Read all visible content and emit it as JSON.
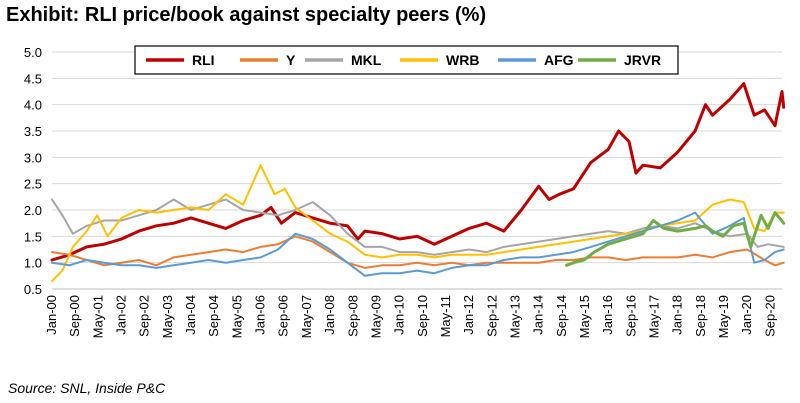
{
  "header": {
    "title": "Exhibit: RLI price/book against specialty peers (%)"
  },
  "footer": {
    "source": "Source: SNL, Inside P&C"
  },
  "chart_data": {
    "type": "line",
    "title": "Exhibit: RLI price/book against specialty peers (%)",
    "xlabel": "",
    "ylabel": "",
    "ylim": [
      0.5,
      5.0
    ],
    "yticks": [
      "5.0",
      "4.5",
      "4.0",
      "3.5",
      "3.0",
      "2.5",
      "2.0",
      "1.5",
      "1.0",
      "0.5"
    ],
    "x_tick_labels": [
      "Jan-00",
      "Sep-00",
      "May-01",
      "Jan-02",
      "Sep-02",
      "May-03",
      "Jan-04",
      "Sep-04",
      "May-05",
      "Jan-06",
      "Sep-06",
      "May-07",
      "Jan-08",
      "Sep-08",
      "May-09",
      "Jan-10",
      "Sep-10",
      "May-11",
      "Jan-12",
      "Sep-12",
      "May-13",
      "Jan-14",
      "Sep-14",
      "May-15",
      "Jan-16",
      "Sep-16",
      "May-17",
      "Jan-18",
      "Sep-18",
      "May-19",
      "Jan-20",
      "Sep-20"
    ],
    "x_range_years": [
      2000.0,
      2021.0
    ],
    "grid": "horizontal",
    "legend_position": "top",
    "series": [
      {
        "name": "RLI",
        "color": "#C00000",
        "points": [
          [
            2000.0,
            1.05
          ],
          [
            2000.5,
            1.15
          ],
          [
            2001.0,
            1.3
          ],
          [
            2001.5,
            1.35
          ],
          [
            2002.0,
            1.45
          ],
          [
            2002.5,
            1.6
          ],
          [
            2003.0,
            1.7
          ],
          [
            2003.5,
            1.75
          ],
          [
            2004.0,
            1.85
          ],
          [
            2004.5,
            1.75
          ],
          [
            2005.0,
            1.65
          ],
          [
            2005.5,
            1.8
          ],
          [
            2006.0,
            1.9
          ],
          [
            2006.3,
            2.05
          ],
          [
            2006.6,
            1.75
          ],
          [
            2007.0,
            1.95
          ],
          [
            2007.5,
            1.85
          ],
          [
            2008.0,
            1.75
          ],
          [
            2008.5,
            1.7
          ],
          [
            2008.8,
            1.45
          ],
          [
            2009.0,
            1.6
          ],
          [
            2009.5,
            1.55
          ],
          [
            2010.0,
            1.45
          ],
          [
            2010.5,
            1.5
          ],
          [
            2011.0,
            1.35
          ],
          [
            2011.5,
            1.5
          ],
          [
            2012.0,
            1.65
          ],
          [
            2012.5,
            1.75
          ],
          [
            2013.0,
            1.6
          ],
          [
            2013.5,
            2.0
          ],
          [
            2014.0,
            2.45
          ],
          [
            2014.3,
            2.2
          ],
          [
            2014.6,
            2.3
          ],
          [
            2015.0,
            2.4
          ],
          [
            2015.5,
            2.9
          ],
          [
            2016.0,
            3.15
          ],
          [
            2016.3,
            3.5
          ],
          [
            2016.6,
            3.3
          ],
          [
            2016.8,
            2.7
          ],
          [
            2017.0,
            2.85
          ],
          [
            2017.5,
            2.8
          ],
          [
            2018.0,
            3.1
          ],
          [
            2018.5,
            3.5
          ],
          [
            2018.8,
            4.0
          ],
          [
            2019.0,
            3.8
          ],
          [
            2019.5,
            4.1
          ],
          [
            2019.9,
            4.4
          ],
          [
            2020.2,
            3.8
          ],
          [
            2020.5,
            3.9
          ],
          [
            2020.8,
            3.6
          ],
          [
            2021.0,
            4.25
          ],
          [
            2021.05,
            3.95
          ]
        ]
      },
      {
        "name": "Y",
        "color": "#ED7D31",
        "points": [
          [
            2000.0,
            1.2
          ],
          [
            2000.5,
            1.15
          ],
          [
            2001.0,
            1.05
          ],
          [
            2001.5,
            0.95
          ],
          [
            2002.0,
            1.0
          ],
          [
            2002.5,
            1.05
          ],
          [
            2003.0,
            0.95
          ],
          [
            2003.5,
            1.1
          ],
          [
            2004.0,
            1.15
          ],
          [
            2004.5,
            1.2
          ],
          [
            2005.0,
            1.25
          ],
          [
            2005.5,
            1.2
          ],
          [
            2006.0,
            1.3
          ],
          [
            2006.5,
            1.35
          ],
          [
            2007.0,
            1.5
          ],
          [
            2007.5,
            1.4
          ],
          [
            2008.0,
            1.2
          ],
          [
            2008.5,
            1.0
          ],
          [
            2009.0,
            0.9
          ],
          [
            2009.5,
            0.95
          ],
          [
            2010.0,
            0.95
          ],
          [
            2010.5,
            1.0
          ],
          [
            2011.0,
            0.95
          ],
          [
            2011.5,
            1.0
          ],
          [
            2012.0,
            0.95
          ],
          [
            2012.5,
            1.0
          ],
          [
            2013.0,
            1.0
          ],
          [
            2013.5,
            1.0
          ],
          [
            2014.0,
            1.0
          ],
          [
            2014.5,
            1.05
          ],
          [
            2015.0,
            1.05
          ],
          [
            2015.5,
            1.1
          ],
          [
            2016.0,
            1.1
          ],
          [
            2016.5,
            1.05
          ],
          [
            2017.0,
            1.1
          ],
          [
            2017.5,
            1.1
          ],
          [
            2018.0,
            1.1
          ],
          [
            2018.5,
            1.15
          ],
          [
            2019.0,
            1.1
          ],
          [
            2019.5,
            1.2
          ],
          [
            2020.0,
            1.25
          ],
          [
            2020.5,
            1.05
          ],
          [
            2020.8,
            0.95
          ],
          [
            2021.05,
            1.0
          ]
        ]
      },
      {
        "name": "MKL",
        "color": "#A5A5A5",
        "points": [
          [
            2000.0,
            2.2
          ],
          [
            2000.3,
            1.9
          ],
          [
            2000.6,
            1.55
          ],
          [
            2001.0,
            1.7
          ],
          [
            2001.5,
            1.8
          ],
          [
            2002.0,
            1.8
          ],
          [
            2002.5,
            1.9
          ],
          [
            2003.0,
            2.0
          ],
          [
            2003.5,
            2.2
          ],
          [
            2004.0,
            2.0
          ],
          [
            2004.5,
            2.1
          ],
          [
            2005.0,
            2.2
          ],
          [
            2005.5,
            2.0
          ],
          [
            2006.0,
            1.95
          ],
          [
            2006.5,
            1.9
          ],
          [
            2007.0,
            2.0
          ],
          [
            2007.5,
            2.15
          ],
          [
            2008.0,
            1.9
          ],
          [
            2008.5,
            1.55
          ],
          [
            2009.0,
            1.3
          ],
          [
            2009.5,
            1.3
          ],
          [
            2010.0,
            1.2
          ],
          [
            2010.5,
            1.2
          ],
          [
            2011.0,
            1.15
          ],
          [
            2011.5,
            1.2
          ],
          [
            2012.0,
            1.25
          ],
          [
            2012.5,
            1.2
          ],
          [
            2013.0,
            1.3
          ],
          [
            2013.5,
            1.35
          ],
          [
            2014.0,
            1.4
          ],
          [
            2014.5,
            1.45
          ],
          [
            2015.0,
            1.5
          ],
          [
            2015.5,
            1.55
          ],
          [
            2016.0,
            1.6
          ],
          [
            2016.5,
            1.55
          ],
          [
            2017.0,
            1.65
          ],
          [
            2017.5,
            1.7
          ],
          [
            2018.0,
            1.65
          ],
          [
            2018.5,
            1.75
          ],
          [
            2019.0,
            1.6
          ],
          [
            2019.5,
            1.5
          ],
          [
            2020.0,
            1.55
          ],
          [
            2020.3,
            1.3
          ],
          [
            2020.6,
            1.35
          ],
          [
            2021.05,
            1.3
          ]
        ]
      },
      {
        "name": "WRB",
        "color": "#FFC000",
        "points": [
          [
            2000.0,
            0.65
          ],
          [
            2000.3,
            0.85
          ],
          [
            2000.6,
            1.3
          ],
          [
            2001.0,
            1.6
          ],
          [
            2001.3,
            1.9
          ],
          [
            2001.6,
            1.5
          ],
          [
            2002.0,
            1.85
          ],
          [
            2002.5,
            2.0
          ],
          [
            2003.0,
            1.95
          ],
          [
            2003.5,
            2.0
          ],
          [
            2004.0,
            2.05
          ],
          [
            2004.5,
            2.0
          ],
          [
            2005.0,
            2.3
          ],
          [
            2005.5,
            2.1
          ],
          [
            2006.0,
            2.85
          ],
          [
            2006.4,
            2.3
          ],
          [
            2006.7,
            2.4
          ],
          [
            2007.0,
            2.05
          ],
          [
            2007.5,
            1.8
          ],
          [
            2008.0,
            1.55
          ],
          [
            2008.5,
            1.4
          ],
          [
            2009.0,
            1.15
          ],
          [
            2009.5,
            1.1
          ],
          [
            2010.0,
            1.15
          ],
          [
            2010.5,
            1.15
          ],
          [
            2011.0,
            1.1
          ],
          [
            2011.5,
            1.15
          ],
          [
            2012.0,
            1.15
          ],
          [
            2012.5,
            1.15
          ],
          [
            2013.0,
            1.2
          ],
          [
            2013.5,
            1.25
          ],
          [
            2014.0,
            1.3
          ],
          [
            2014.5,
            1.35
          ],
          [
            2015.0,
            1.4
          ],
          [
            2015.5,
            1.45
          ],
          [
            2016.0,
            1.5
          ],
          [
            2016.5,
            1.55
          ],
          [
            2017.0,
            1.6
          ],
          [
            2017.5,
            1.7
          ],
          [
            2018.0,
            1.75
          ],
          [
            2018.5,
            1.8
          ],
          [
            2019.0,
            2.1
          ],
          [
            2019.5,
            2.2
          ],
          [
            2019.9,
            2.15
          ],
          [
            2020.2,
            1.65
          ],
          [
            2020.5,
            1.6
          ],
          [
            2020.8,
            1.95
          ],
          [
            2021.05,
            1.95
          ]
        ]
      },
      {
        "name": "AFG",
        "color": "#5B9BD5",
        "points": [
          [
            2000.0,
            1.0
          ],
          [
            2000.5,
            0.95
          ],
          [
            2001.0,
            1.05
          ],
          [
            2001.5,
            1.0
          ],
          [
            2002.0,
            0.95
          ],
          [
            2002.5,
            0.95
          ],
          [
            2003.0,
            0.9
          ],
          [
            2003.5,
            0.95
          ],
          [
            2004.0,
            1.0
          ],
          [
            2004.5,
            1.05
          ],
          [
            2005.0,
            1.0
          ],
          [
            2005.5,
            1.05
          ],
          [
            2006.0,
            1.1
          ],
          [
            2006.5,
            1.25
          ],
          [
            2007.0,
            1.55
          ],
          [
            2007.5,
            1.45
          ],
          [
            2008.0,
            1.25
          ],
          [
            2008.5,
            1.0
          ],
          [
            2009.0,
            0.75
          ],
          [
            2009.5,
            0.8
          ],
          [
            2010.0,
            0.8
          ],
          [
            2010.5,
            0.85
          ],
          [
            2011.0,
            0.8
          ],
          [
            2011.5,
            0.9
          ],
          [
            2012.0,
            0.95
          ],
          [
            2012.5,
            0.95
          ],
          [
            2013.0,
            1.05
          ],
          [
            2013.5,
            1.1
          ],
          [
            2014.0,
            1.1
          ],
          [
            2014.5,
            1.15
          ],
          [
            2015.0,
            1.2
          ],
          [
            2015.5,
            1.3
          ],
          [
            2016.0,
            1.4
          ],
          [
            2016.5,
            1.5
          ],
          [
            2017.0,
            1.6
          ],
          [
            2017.5,
            1.7
          ],
          [
            2018.0,
            1.8
          ],
          [
            2018.5,
            1.95
          ],
          [
            2019.0,
            1.55
          ],
          [
            2019.5,
            1.7
          ],
          [
            2019.9,
            1.85
          ],
          [
            2020.2,
            1.0
          ],
          [
            2020.5,
            1.05
          ],
          [
            2020.8,
            1.2
          ],
          [
            2021.05,
            1.25
          ]
        ]
      },
      {
        "name": "JRVR",
        "color": "#70AD47",
        "points": [
          [
            2014.8,
            0.95
          ],
          [
            2015.0,
            1.0
          ],
          [
            2015.3,
            1.05
          ],
          [
            2015.6,
            1.2
          ],
          [
            2016.0,
            1.35
          ],
          [
            2016.5,
            1.45
          ],
          [
            2017.0,
            1.55
          ],
          [
            2017.3,
            1.8
          ],
          [
            2017.6,
            1.65
          ],
          [
            2018.0,
            1.6
          ],
          [
            2018.5,
            1.65
          ],
          [
            2018.8,
            1.7
          ],
          [
            2019.0,
            1.6
          ],
          [
            2019.3,
            1.5
          ],
          [
            2019.6,
            1.7
          ],
          [
            2019.9,
            1.75
          ],
          [
            2020.1,
            1.3
          ],
          [
            2020.4,
            1.9
          ],
          [
            2020.6,
            1.65
          ],
          [
            2020.8,
            1.95
          ],
          [
            2021.05,
            1.75
          ]
        ]
      }
    ]
  }
}
